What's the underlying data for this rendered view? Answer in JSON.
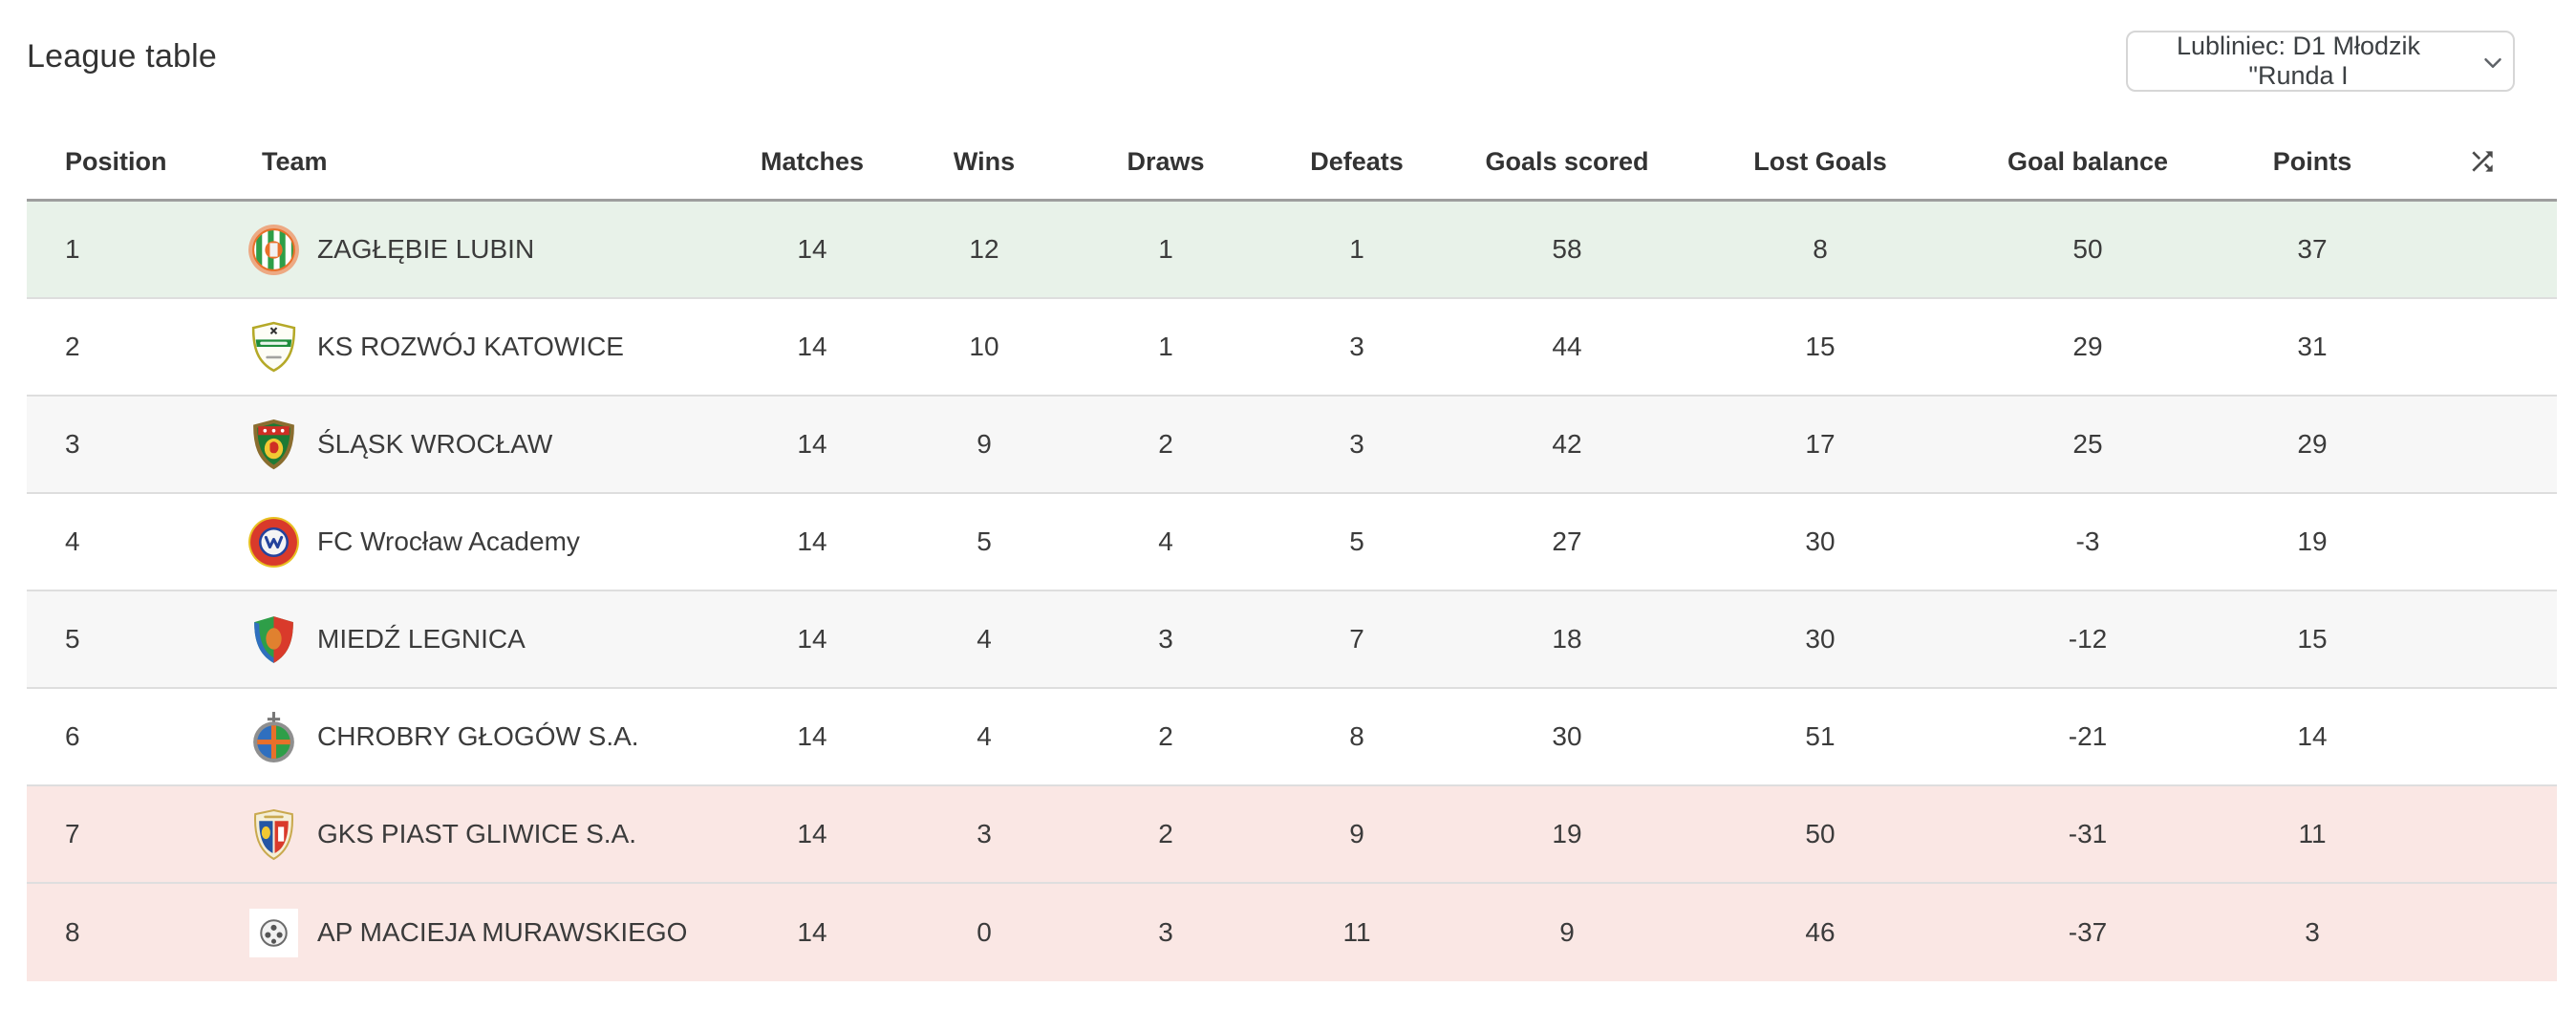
{
  "page": {
    "title": "League table"
  },
  "league_selector": {
    "value": "Lubliniec: D1 Młodzik \"Runda I",
    "chevron_icon": "chevron-down-icon"
  },
  "table": {
    "headers": {
      "position": "Position",
      "team": "Team",
      "matches": "Matches",
      "wins": "Wins",
      "draws": "Draws",
      "defeats": "Defeats",
      "goals_scored": "Goals scored",
      "lost_goals": "Lost Goals",
      "goal_balance": "Goal balance",
      "points": "Points"
    },
    "sort_icon": "shuffle-icon",
    "rows": [
      {
        "position": 1,
        "team": "ZAGŁĘBIE LUBIN",
        "matches": 14,
        "wins": 12,
        "draws": 1,
        "defeats": 1,
        "goals_scored": 58,
        "lost_goals": 8,
        "goal_balance": 50,
        "points": 37,
        "highlight": "promotion",
        "crest_icon": "zaglebie-lubin-crest"
      },
      {
        "position": 2,
        "team": "KS ROZWÓJ KATOWICE",
        "matches": 14,
        "wins": 10,
        "draws": 1,
        "defeats": 3,
        "goals_scored": 44,
        "lost_goals": 15,
        "goal_balance": 29,
        "points": 31,
        "highlight": null,
        "crest_icon": "rozwoj-katowice-crest"
      },
      {
        "position": 3,
        "team": "ŚLĄSK WROCŁAW",
        "matches": 14,
        "wins": 9,
        "draws": 2,
        "defeats": 3,
        "goals_scored": 42,
        "lost_goals": 17,
        "goal_balance": 25,
        "points": 29,
        "highlight": null,
        "crest_icon": "slask-wroclaw-crest"
      },
      {
        "position": 4,
        "team": "FC Wrocław Academy",
        "matches": 14,
        "wins": 5,
        "draws": 4,
        "defeats": 5,
        "goals_scored": 27,
        "lost_goals": 30,
        "goal_balance": -3,
        "points": 19,
        "highlight": null,
        "crest_icon": "fc-wroclaw-academy-crest"
      },
      {
        "position": 5,
        "team": "MIEDŹ LEGNICA",
        "matches": 14,
        "wins": 4,
        "draws": 3,
        "defeats": 7,
        "goals_scored": 18,
        "lost_goals": 30,
        "goal_balance": -12,
        "points": 15,
        "highlight": null,
        "crest_icon": "miedz-legnica-crest"
      },
      {
        "position": 6,
        "team": "CHROBRY GŁOGÓW S.A.",
        "matches": 14,
        "wins": 4,
        "draws": 2,
        "defeats": 8,
        "goals_scored": 30,
        "lost_goals": 51,
        "goal_balance": -21,
        "points": 14,
        "highlight": null,
        "crest_icon": "chrobry-glogow-crest"
      },
      {
        "position": 7,
        "team": "GKS PIAST GLIWICE S.A.",
        "matches": 14,
        "wins": 3,
        "draws": 2,
        "defeats": 9,
        "goals_scored": 19,
        "lost_goals": 50,
        "goal_balance": -31,
        "points": 11,
        "highlight": "relegation",
        "crest_icon": "gks-piast-gliwice-crest"
      },
      {
        "position": 8,
        "team": "AP MACIEJA MURAWSKIEGO",
        "matches": 14,
        "wins": 0,
        "draws": 3,
        "defeats": 11,
        "goals_scored": 9,
        "lost_goals": 46,
        "goal_balance": -37,
        "points": 3,
        "highlight": "relegation",
        "crest_icon": "ap-macieja-murawskiego-crest"
      }
    ]
  },
  "colors": {
    "promotion_row": "#e8f2e9",
    "relegation_row": "#fae7e4",
    "zebra_row": "#f7f7f7",
    "header_divider": "#9e9e9e",
    "row_divider": "#dedede",
    "text": "#3b3b3b"
  }
}
